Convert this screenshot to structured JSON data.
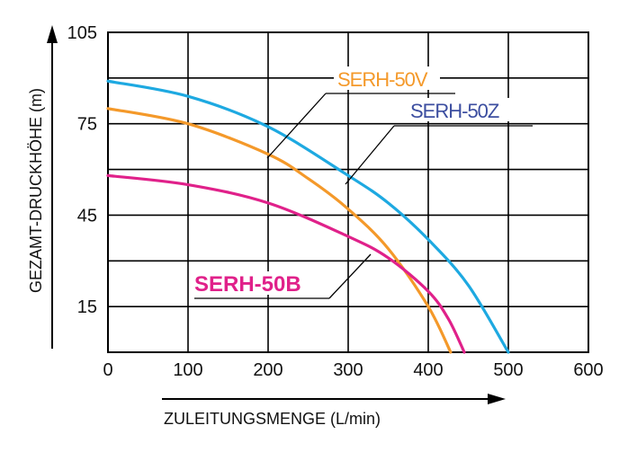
{
  "chart_data": {
    "type": "line",
    "xlabel": "ZULEITUNGSMENGE (L/min)",
    "ylabel": "GEZAMT-DRUCKHÖHE (m)",
    "xlim": [
      0,
      600
    ],
    "ylim": [
      0,
      105
    ],
    "x_ticks": [
      "0",
      "100",
      "200",
      "300",
      "400",
      "500",
      "600"
    ],
    "y_ticks": [
      "15",
      "45",
      "75",
      "105"
    ],
    "grid": true,
    "series": [
      {
        "name": "SERH-50Z",
        "color": "#1EA9E1",
        "x": [
          0,
          100,
          200,
          300,
          350,
          400,
          450,
          500
        ],
        "y": [
          89,
          84,
          74,
          58,
          49,
          37,
          22,
          0
        ]
      },
      {
        "name": "SERH-50V",
        "color": "#F4992A",
        "x": [
          0,
          100,
          200,
          250,
          300,
          350,
          400,
          428
        ],
        "y": [
          80,
          75,
          65,
          57,
          47,
          34,
          15,
          0
        ]
      },
      {
        "name": "SERH-50B",
        "color": "#E0218A",
        "x": [
          0,
          100,
          200,
          300,
          350,
          400,
          425,
          445
        ],
        "y": [
          58,
          55,
          49,
          38,
          31,
          20,
          11,
          0
        ]
      }
    ]
  }
}
